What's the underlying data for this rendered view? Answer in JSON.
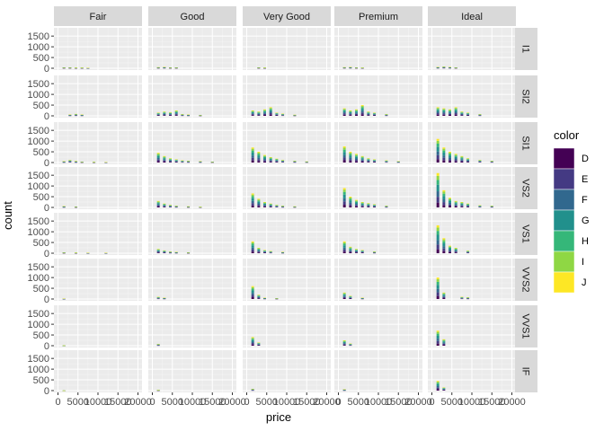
{
  "chart_data": {
    "type": "bar",
    "subtype": "faceted stacked histogram",
    "xlabel": "price",
    "ylabel": "count",
    "x_ticks": [
      "0",
      "5000",
      "10000",
      "15000",
      "20000"
    ],
    "y_ticks": [
      "0",
      "500",
      "1000",
      "1500"
    ],
    "xlim": [
      0,
      20000
    ],
    "ylim": [
      0,
      1800
    ],
    "grid": true,
    "legend_position": "right",
    "col_facets": [
      "Fair",
      "Good",
      "Very Good",
      "Premium",
      "Ideal"
    ],
    "row_facets": [
      "I1",
      "SI2",
      "SI1",
      "VS2",
      "VS1",
      "VVS2",
      "VVS1",
      "IF"
    ],
    "legend": {
      "title": "color",
      "items": [
        {
          "label": "D",
          "color": "#440154"
        },
        {
          "label": "E",
          "color": "#443A83"
        },
        {
          "label": "F",
          "color": "#31688E"
        },
        {
          "label": "G",
          "color": "#21908C"
        },
        {
          "label": "H",
          "color": "#35B779"
        },
        {
          "label": "I",
          "color": "#8FD744"
        },
        {
          "label": "J",
          "color": "#FDE725"
        }
      ]
    },
    "panels": [
      {
        "cut": "Fair",
        "clarity": "I1",
        "bars": [
          [
            1500,
            40
          ],
          [
            3000,
            40
          ],
          [
            4500,
            30
          ],
          [
            6000,
            30
          ],
          [
            7500,
            20
          ]
        ]
      },
      {
        "cut": "Fair",
        "clarity": "SI2",
        "bars": [
          [
            3000,
            60
          ],
          [
            4500,
            90
          ],
          [
            6000,
            60
          ]
        ]
      },
      {
        "cut": "Fair",
        "clarity": "SI1",
        "bars": [
          [
            1500,
            60
          ],
          [
            3000,
            120
          ],
          [
            4500,
            70
          ],
          [
            6000,
            40
          ],
          [
            9000,
            30
          ],
          [
            12000,
            20
          ]
        ]
      },
      {
        "cut": "Fair",
        "clarity": "VS2",
        "bars": [
          [
            1500,
            60
          ],
          [
            4500,
            40
          ]
        ]
      },
      {
        "cut": "Fair",
        "clarity": "VS1",
        "bars": [
          [
            1500,
            40
          ],
          [
            4500,
            30
          ],
          [
            7500,
            20
          ],
          [
            12000,
            20
          ]
        ]
      },
      {
        "cut": "Fair",
        "clarity": "VVS2",
        "bars": [
          [
            1500,
            20
          ]
        ]
      },
      {
        "cut": "Fair",
        "clarity": "VVS1",
        "bars": [
          [
            1500,
            10
          ]
        ]
      },
      {
        "cut": "Fair",
        "clarity": "IF",
        "bars": [
          [
            1500,
            5
          ]
        ]
      },
      {
        "cut": "Good",
        "clarity": "I1",
        "bars": [
          [
            1500,
            50
          ],
          [
            3000,
            60
          ],
          [
            4500,
            40
          ],
          [
            6000,
            40
          ]
        ]
      },
      {
        "cut": "Good",
        "clarity": "SI2",
        "bars": [
          [
            1500,
            150
          ],
          [
            3000,
            200
          ],
          [
            4500,
            170
          ],
          [
            6000,
            250
          ],
          [
            7500,
            80
          ],
          [
            9000,
            60
          ],
          [
            12000,
            40
          ]
        ]
      },
      {
        "cut": "Good",
        "clarity": "SI1",
        "bars": [
          [
            1500,
            450
          ],
          [
            3000,
            300
          ],
          [
            4500,
            200
          ],
          [
            6000,
            150
          ],
          [
            7500,
            100
          ],
          [
            9000,
            80
          ],
          [
            12000,
            60
          ],
          [
            15000,
            40
          ]
        ]
      },
      {
        "cut": "Good",
        "clarity": "VS2",
        "bars": [
          [
            1500,
            300
          ],
          [
            3000,
            180
          ],
          [
            4500,
            120
          ],
          [
            6000,
            80
          ],
          [
            9000,
            50
          ],
          [
            12000,
            30
          ]
        ]
      },
      {
        "cut": "Good",
        "clarity": "VS1",
        "bars": [
          [
            1500,
            200
          ],
          [
            3000,
            130
          ],
          [
            4500,
            80
          ],
          [
            6000,
            60
          ],
          [
            9000,
            40
          ]
        ]
      },
      {
        "cut": "Good",
        "clarity": "VVS2",
        "bars": [
          [
            1500,
            100
          ],
          [
            3000,
            60
          ]
        ]
      },
      {
        "cut": "Good",
        "clarity": "VVS1",
        "bars": [
          [
            1500,
            80
          ]
        ]
      },
      {
        "cut": "Good",
        "clarity": "IF",
        "bars": [
          [
            1500,
            30
          ]
        ]
      },
      {
        "cut": "Very Good",
        "clarity": "I1",
        "bars": [
          [
            3000,
            40
          ],
          [
            4500,
            30
          ]
        ]
      },
      {
        "cut": "Very Good",
        "clarity": "SI2",
        "bars": [
          [
            1500,
            250
          ],
          [
            3000,
            200
          ],
          [
            4500,
            300
          ],
          [
            6000,
            400
          ],
          [
            7500,
            150
          ],
          [
            9000,
            100
          ],
          [
            12000,
            50
          ]
        ]
      },
      {
        "cut": "Very Good",
        "clarity": "SI1",
        "bars": [
          [
            1500,
            700
          ],
          [
            3000,
            500
          ],
          [
            4500,
            350
          ],
          [
            6000,
            250
          ],
          [
            7500,
            180
          ],
          [
            9000,
            120
          ],
          [
            12000,
            80
          ],
          [
            15000,
            50
          ]
        ]
      },
      {
        "cut": "Very Good",
        "clarity": "VS2",
        "bars": [
          [
            1500,
            650
          ],
          [
            3000,
            400
          ],
          [
            4500,
            250
          ],
          [
            6000,
            180
          ],
          [
            7500,
            120
          ],
          [
            9000,
            80
          ],
          [
            12000,
            50
          ]
        ]
      },
      {
        "cut": "Very Good",
        "clarity": "VS1",
        "bars": [
          [
            1500,
            550
          ],
          [
            3000,
            250
          ],
          [
            4500,
            150
          ],
          [
            6000,
            100
          ],
          [
            9000,
            60
          ]
        ]
      },
      {
        "cut": "Very Good",
        "clarity": "VVS2",
        "bars": [
          [
            1500,
            600
          ],
          [
            3000,
            200
          ],
          [
            4500,
            60
          ],
          [
            7500,
            40
          ]
        ]
      },
      {
        "cut": "Very Good",
        "clarity": "VVS1",
        "bars": [
          [
            1500,
            400
          ],
          [
            3000,
            150
          ]
        ]
      },
      {
        "cut": "Very Good",
        "clarity": "IF",
        "bars": [
          [
            1500,
            80
          ]
        ]
      },
      {
        "cut": "Premium",
        "clarity": "I1",
        "bars": [
          [
            1500,
            50
          ],
          [
            3000,
            60
          ],
          [
            4500,
            40
          ],
          [
            6000,
            30
          ]
        ]
      },
      {
        "cut": "Premium",
        "clarity": "SI2",
        "bars": [
          [
            1500,
            350
          ],
          [
            3000,
            250
          ],
          [
            4500,
            300
          ],
          [
            6000,
            500
          ],
          [
            7500,
            200
          ],
          [
            9000,
            150
          ],
          [
            12000,
            80
          ]
        ]
      },
      {
        "cut": "Premium",
        "clarity": "SI1",
        "bars": [
          [
            1500,
            750
          ],
          [
            3000,
            500
          ],
          [
            4500,
            400
          ],
          [
            6000,
            300
          ],
          [
            7500,
            200
          ],
          [
            9000,
            150
          ],
          [
            12000,
            100
          ],
          [
            15000,
            60
          ]
        ]
      },
      {
        "cut": "Premium",
        "clarity": "VS2",
        "bars": [
          [
            1500,
            900
          ],
          [
            3000,
            500
          ],
          [
            4500,
            350
          ],
          [
            6000,
            250
          ],
          [
            7500,
            200
          ],
          [
            9000,
            150
          ],
          [
            12000,
            80
          ]
        ]
      },
      {
        "cut": "Premium",
        "clarity": "VS1",
        "bars": [
          [
            1500,
            550
          ],
          [
            3000,
            300
          ],
          [
            4500,
            200
          ],
          [
            6000,
            150
          ],
          [
            9000,
            80
          ]
        ]
      },
      {
        "cut": "Premium",
        "clarity": "VVS2",
        "bars": [
          [
            1500,
            300
          ],
          [
            3000,
            150
          ],
          [
            6000,
            60
          ]
        ]
      },
      {
        "cut": "Premium",
        "clarity": "VVS1",
        "bars": [
          [
            1500,
            250
          ],
          [
            3000,
            100
          ]
        ]
      },
      {
        "cut": "Premium",
        "clarity": "IF",
        "bars": [
          [
            1500,
            60
          ]
        ]
      },
      {
        "cut": "Ideal",
        "clarity": "I1",
        "bars": [
          [
            1500,
            60
          ],
          [
            3000,
            80
          ],
          [
            4500,
            60
          ],
          [
            6000,
            40
          ]
        ]
      },
      {
        "cut": "Ideal",
        "clarity": "SI2",
        "bars": [
          [
            1500,
            400
          ],
          [
            3000,
            350
          ],
          [
            4500,
            300
          ],
          [
            6000,
            400
          ],
          [
            7500,
            200
          ],
          [
            9000,
            150
          ],
          [
            12000,
            80
          ]
        ]
      },
      {
        "cut": "Ideal",
        "clarity": "SI1",
        "bars": [
          [
            1500,
            1100
          ],
          [
            3000,
            700
          ],
          [
            4500,
            500
          ],
          [
            6000,
            400
          ],
          [
            7500,
            300
          ],
          [
            9000,
            200
          ],
          [
            12000,
            120
          ],
          [
            15000,
            80
          ]
        ]
      },
      {
        "cut": "Ideal",
        "clarity": "VS2",
        "bars": [
          [
            1500,
            1600
          ],
          [
            3000,
            800
          ],
          [
            4500,
            450
          ],
          [
            6000,
            300
          ],
          [
            7500,
            250
          ],
          [
            9000,
            180
          ],
          [
            12000,
            100
          ],
          [
            15000,
            80
          ]
        ]
      },
      {
        "cut": "Ideal",
        "clarity": "VS1",
        "bars": [
          [
            1500,
            1300
          ],
          [
            3000,
            700
          ],
          [
            4500,
            350
          ],
          [
            6000,
            250
          ],
          [
            9000,
            120
          ]
        ]
      },
      {
        "cut": "Ideal",
        "clarity": "VVS2",
        "bars": [
          [
            1500,
            1000
          ],
          [
            3000,
            300
          ],
          [
            7500,
            100
          ],
          [
            9000,
            80
          ]
        ]
      },
      {
        "cut": "Ideal",
        "clarity": "VVS1",
        "bars": [
          [
            1500,
            700
          ],
          [
            3000,
            300
          ]
        ]
      },
      {
        "cut": "Ideal",
        "clarity": "IF",
        "bars": [
          [
            1500,
            450
          ],
          [
            3000,
            150
          ]
        ]
      }
    ]
  }
}
